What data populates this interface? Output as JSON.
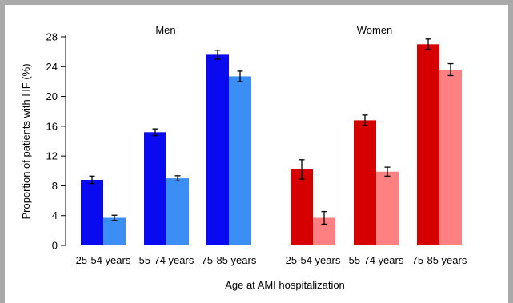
{
  "chart_data": {
    "type": "bar",
    "ylabel": "Proportion of patients with HF (%)",
    "xlabel": "Age at AMI hospitalization",
    "ylim": [
      0,
      28
    ],
    "yticks": [
      0,
      4,
      8,
      12,
      16,
      20,
      24,
      28
    ],
    "grid": false,
    "panels": [
      {
        "title": "Men",
        "categories": [
          "25-54 years",
          "55-74 years",
          "75-85 years"
        ],
        "series": [
          {
            "values": [
              8.8,
              15.2,
              25.6
            ],
            "errors": [
              0.5,
              0.45,
              0.6
            ],
            "color": "#0a0af0"
          },
          {
            "values": [
              3.7,
              9.0,
              22.7
            ],
            "errors": [
              0.35,
              0.35,
              0.7
            ],
            "color": "#3a8ef5"
          }
        ]
      },
      {
        "title": "Women",
        "categories": [
          "25-54 years",
          "55-74 years",
          "75-85 years"
        ],
        "series": [
          {
            "values": [
              10.2,
              16.8,
              27.0
            ],
            "errors": [
              1.3,
              0.7,
              0.7
            ],
            "color": "#d60000"
          },
          {
            "values": [
              3.7,
              9.9,
              23.6
            ],
            "errors": [
              0.85,
              0.6,
              0.8
            ],
            "color": "#ff8080"
          }
        ]
      }
    ]
  }
}
